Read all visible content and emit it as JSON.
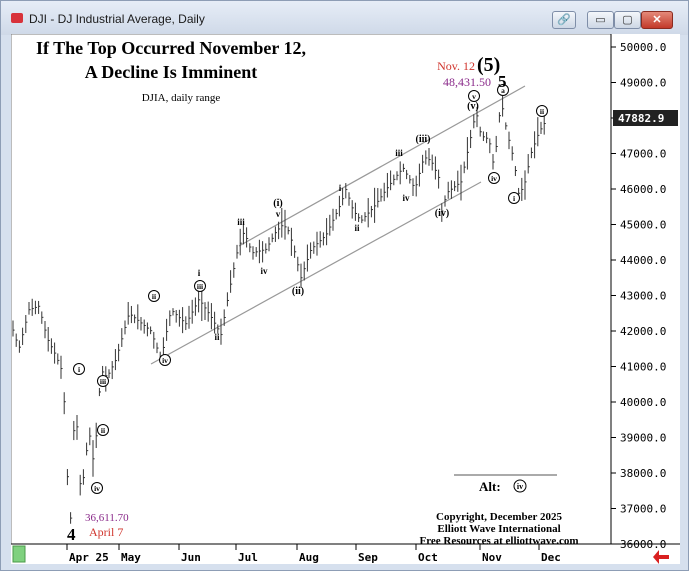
{
  "window": {
    "title": "DJI - DJ Industrial Average, Daily",
    "close_glyph": "✕",
    "min_glyph": "▭",
    "max_glyph": "▢",
    "link_glyph": "🔗"
  },
  "colors": {
    "background": "#ffffff",
    "price_bars": "#333333",
    "channel": "#999999",
    "nov_label": "#d0342c",
    "nov_value": "#8a2a8a",
    "april_value": "#8a2a8a",
    "april_label": "#d0342c",
    "nav_arrow": "#d92020",
    "scroll_thumb": "#7fd17f"
  },
  "chart_data": {
    "type": "bar",
    "title": "If The Top Occurred November 12,",
    "subtitle": "A Decline Is Imminent",
    "series_label": "DJIA, daily range",
    "y_axis": {
      "min": 36000,
      "max": 50000,
      "ticks": [
        "50000.0",
        "49000.0",
        "48000.0",
        "47000.0",
        "46000.0",
        "45000.0",
        "44000.0",
        "43000.0",
        "42000.0",
        "41000.0",
        "40000.0",
        "39000.0",
        "38000.0",
        "37000.0",
        "36000.0"
      ],
      "last_price": "47882.9"
    },
    "x_axis": {
      "ticks": [
        "Apr 25",
        "May",
        "Jun",
        "Jul",
        "Aug",
        "Sep",
        "Oct",
        "Nov",
        "Dec"
      ]
    },
    "key_points": [
      {
        "date": "2025-04-07",
        "value": 36611.7,
        "value_label": "36,611.70",
        "date_label": "April 7",
        "wave": "4"
      },
      {
        "date": "2025-11-12",
        "value": 48431.5,
        "value_label": "48,431.50",
        "date_label": "Nov. 12",
        "wave": "(5)"
      }
    ],
    "wave_labels": [
      {
        "text": "(5)",
        "style": "big"
      },
      {
        "text": "5",
        "style": "plain-big"
      },
      {
        "text": "4",
        "style": "plain-big"
      },
      {
        "text": "i",
        "style": "circle"
      },
      {
        "text": "ii",
        "style": "circle"
      },
      {
        "text": "iii",
        "style": "circle"
      },
      {
        "text": "iv",
        "style": "circle"
      },
      {
        "text": "v",
        "style": "circle"
      },
      {
        "text": "a",
        "style": "circle"
      },
      {
        "text": "b",
        "style": "circle"
      },
      {
        "text": "c",
        "style": "circle"
      },
      {
        "text": "(i)",
        "style": "paren"
      },
      {
        "text": "(ii)",
        "style": "paren"
      },
      {
        "text": "(iii)",
        "style": "paren"
      },
      {
        "text": "(iv)",
        "style": "paren"
      },
      {
        "text": "(v)",
        "style": "paren"
      },
      {
        "text": "i",
        "style": "plain"
      },
      {
        "text": "ii",
        "style": "plain"
      },
      {
        "text": "iii",
        "style": "plain"
      },
      {
        "text": "iv",
        "style": "plain"
      },
      {
        "text": "v",
        "style": "plain"
      }
    ],
    "alt_label": "Alt:",
    "alt_wave": "iv",
    "credits": [
      "Copyright, December 2025",
      "Elliott Wave International",
      "Free Resources at elliottwave.com"
    ]
  }
}
